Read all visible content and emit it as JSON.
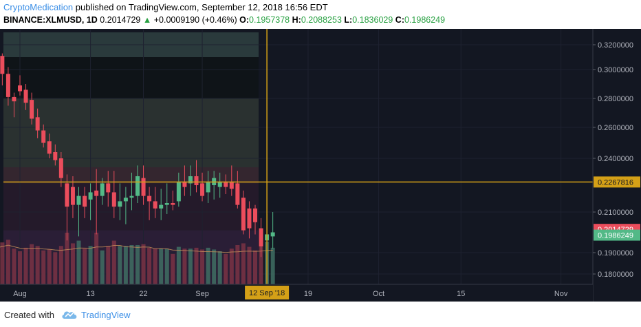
{
  "header": {
    "author": "CryptoMedication",
    "published": "published on TradingView.com, September 12, 2018 16:56 EDT",
    "symbol": "BINANCE:XLMUSD, 1D",
    "last": "0.2014729",
    "change_arrow": "▲",
    "change": "+0.0009190 (+0.46%)",
    "open_label": "O:",
    "open": "0.1957378",
    "high_label": "H:",
    "high": "0.2088253",
    "low_label": "L:",
    "low": "0.1836029",
    "close_label": "C:",
    "close": "0.1986249"
  },
  "footer": {
    "created_with": "Created with",
    "brand": "TradingView"
  },
  "colors": {
    "background": "#131722",
    "up": "#53b987",
    "down": "#eb4d5c",
    "crosshair": "#d4a017",
    "grid": "#1e2230"
  },
  "chart_data": {
    "type": "candlestick",
    "price_axis": {
      "ticks": [
        "0.3200000",
        "0.3000000",
        "0.2800000",
        "0.2600000",
        "0.2400000",
        "0.2100000",
        "0.1900000",
        "0.1800000"
      ],
      "tick_values": [
        0.32,
        0.3,
        0.28,
        0.26,
        0.24,
        0.21,
        0.19,
        0.18
      ]
    },
    "time_axis": {
      "labels": [
        "Aug",
        "13",
        "22",
        "Sep",
        "19",
        "Oct",
        "15",
        "Nov"
      ],
      "label_dates": [
        "2018-08-01",
        "2018-08-13",
        "2018-08-22",
        "2018-09-01",
        "2018-09-19",
        "2018-10-01",
        "2018-10-15",
        "2018-11-01"
      ]
    },
    "crosshair": {
      "date_label": "12 Sep '18",
      "date": "2018-09-12",
      "price_label": "0.2267816",
      "price": 0.2267816
    },
    "price_labels": [
      {
        "text": "0.2014729",
        "value": 0.2014729,
        "color": "#eb4d5c"
      },
      {
        "text": "0.1986249",
        "value": 0.1986249,
        "color": "#53b987"
      }
    ],
    "zones": [
      {
        "from": 0.31,
        "to": 0.33,
        "color": "#2a3a3c"
      },
      {
        "from": 0.28,
        "to": 0.31,
        "color": "#0f1418"
      },
      {
        "from": 0.235,
        "to": 0.28,
        "color": "#2a3130"
      },
      {
        "from": 0.226,
        "to": 0.235,
        "color": "#34262f"
      },
      {
        "from": 0.201,
        "to": 0.226,
        "color": "#241a2a"
      },
      {
        "from": 0.175,
        "to": 0.201,
        "color": "#2a1e36"
      }
    ],
    "candles": [
      {
        "date": "2018-07-28",
        "o": 0.3,
        "h": 0.316,
        "l": 0.295,
        "c": 0.313
      },
      {
        "date": "2018-07-29",
        "o": 0.311,
        "h": 0.313,
        "l": 0.289,
        "c": 0.297
      },
      {
        "date": "2018-07-30",
        "o": 0.297,
        "h": 0.302,
        "l": 0.275,
        "c": 0.281
      },
      {
        "date": "2018-07-31",
        "o": 0.281,
        "h": 0.284,
        "l": 0.267,
        "c": 0.278
      },
      {
        "date": "2018-08-01",
        "o": 0.289,
        "h": 0.296,
        "l": 0.282,
        "c": 0.285
      },
      {
        "date": "2018-08-02",
        "o": 0.286,
        "h": 0.29,
        "l": 0.272,
        "c": 0.277
      },
      {
        "date": "2018-08-03",
        "o": 0.279,
        "h": 0.284,
        "l": 0.262,
        "c": 0.266
      },
      {
        "date": "2018-08-04",
        "o": 0.267,
        "h": 0.273,
        "l": 0.253,
        "c": 0.258
      },
      {
        "date": "2018-08-05",
        "o": 0.258,
        "h": 0.262,
        "l": 0.247,
        "c": 0.25
      },
      {
        "date": "2018-08-06",
        "o": 0.251,
        "h": 0.256,
        "l": 0.24,
        "c": 0.243
      },
      {
        "date": "2018-08-07",
        "o": 0.244,
        "h": 0.249,
        "l": 0.236,
        "c": 0.239
      },
      {
        "date": "2018-08-08",
        "o": 0.24,
        "h": 0.244,
        "l": 0.224,
        "c": 0.229
      },
      {
        "date": "2018-08-09",
        "o": 0.226,
        "h": 0.231,
        "l": 0.196,
        "c": 0.213
      },
      {
        "date": "2018-08-10",
        "o": 0.224,
        "h": 0.23,
        "l": 0.207,
        "c": 0.214
      },
      {
        "date": "2018-08-11",
        "o": 0.214,
        "h": 0.224,
        "l": 0.198,
        "c": 0.219
      },
      {
        "date": "2018-08-12",
        "o": 0.219,
        "h": 0.224,
        "l": 0.207,
        "c": 0.213
      },
      {
        "date": "2018-08-13",
        "o": 0.217,
        "h": 0.226,
        "l": 0.206,
        "c": 0.221
      },
      {
        "date": "2018-08-14",
        "o": 0.222,
        "h": 0.234,
        "l": 0.199,
        "c": 0.219
      },
      {
        "date": "2018-08-15",
        "o": 0.219,
        "h": 0.229,
        "l": 0.214,
        "c": 0.226
      },
      {
        "date": "2018-08-16",
        "o": 0.226,
        "h": 0.233,
        "l": 0.213,
        "c": 0.221
      },
      {
        "date": "2018-08-17",
        "o": 0.221,
        "h": 0.233,
        "l": 0.207,
        "c": 0.213
      },
      {
        "date": "2018-08-18",
        "o": 0.213,
        "h": 0.226,
        "l": 0.206,
        "c": 0.216
      },
      {
        "date": "2018-08-19",
        "o": 0.216,
        "h": 0.224,
        "l": 0.204,
        "c": 0.218
      },
      {
        "date": "2018-08-20",
        "o": 0.218,
        "h": 0.232,
        "l": 0.211,
        "c": 0.219
      },
      {
        "date": "2018-08-21",
        "o": 0.219,
        "h": 0.236,
        "l": 0.215,
        "c": 0.23
      },
      {
        "date": "2018-08-22",
        "o": 0.229,
        "h": 0.236,
        "l": 0.214,
        "c": 0.219
      },
      {
        "date": "2018-08-23",
        "o": 0.219,
        "h": 0.224,
        "l": 0.206,
        "c": 0.216
      },
      {
        "date": "2018-08-24",
        "o": 0.216,
        "h": 0.224,
        "l": 0.207,
        "c": 0.212
      },
      {
        "date": "2018-08-25",
        "o": 0.212,
        "h": 0.223,
        "l": 0.206,
        "c": 0.214
      },
      {
        "date": "2018-08-26",
        "o": 0.214,
        "h": 0.226,
        "l": 0.209,
        "c": 0.215
      },
      {
        "date": "2018-08-27",
        "o": 0.215,
        "h": 0.222,
        "l": 0.211,
        "c": 0.214
      },
      {
        "date": "2018-08-28",
        "o": 0.216,
        "h": 0.232,
        "l": 0.213,
        "c": 0.227
      },
      {
        "date": "2018-08-29",
        "o": 0.227,
        "h": 0.236,
        "l": 0.219,
        "c": 0.224
      },
      {
        "date": "2018-08-30",
        "o": 0.226,
        "h": 0.236,
        "l": 0.219,
        "c": 0.23
      },
      {
        "date": "2018-08-31",
        "o": 0.23,
        "h": 0.239,
        "l": 0.221,
        "c": 0.225
      },
      {
        "date": "2018-09-01",
        "o": 0.226,
        "h": 0.232,
        "l": 0.216,
        "c": 0.219
      },
      {
        "date": "2018-09-02",
        "o": 0.221,
        "h": 0.233,
        "l": 0.215,
        "c": 0.227
      },
      {
        "date": "2018-09-03",
        "o": 0.225,
        "h": 0.233,
        "l": 0.217,
        "c": 0.229
      },
      {
        "date": "2018-09-04",
        "o": 0.224,
        "h": 0.232,
        "l": 0.218,
        "c": 0.227
      },
      {
        "date": "2018-09-05",
        "o": 0.227,
        "h": 0.231,
        "l": 0.22,
        "c": 0.224
      },
      {
        "date": "2018-09-06",
        "o": 0.227,
        "h": 0.236,
        "l": 0.219,
        "c": 0.223
      },
      {
        "date": "2018-09-07",
        "o": 0.226,
        "h": 0.233,
        "l": 0.212,
        "c": 0.214
      },
      {
        "date": "2018-09-08",
        "o": 0.218,
        "h": 0.222,
        "l": 0.199,
        "c": 0.201
      },
      {
        "date": "2018-09-09",
        "o": 0.212,
        "h": 0.216,
        "l": 0.197,
        "c": 0.202
      },
      {
        "date": "2018-09-10",
        "o": 0.212,
        "h": 0.214,
        "l": 0.199,
        "c": 0.205
      },
      {
        "date": "2018-09-11",
        "o": 0.202,
        "h": 0.207,
        "l": 0.188,
        "c": 0.193
      },
      {
        "date": "2018-09-12",
        "o": 0.196,
        "h": 0.209,
        "l": 0.184,
        "c": 0.199
      },
      {
        "date": "2018-09-13",
        "o": 0.198,
        "h": 0.21,
        "l": 0.192,
        "c": 0.2
      }
    ]
  }
}
